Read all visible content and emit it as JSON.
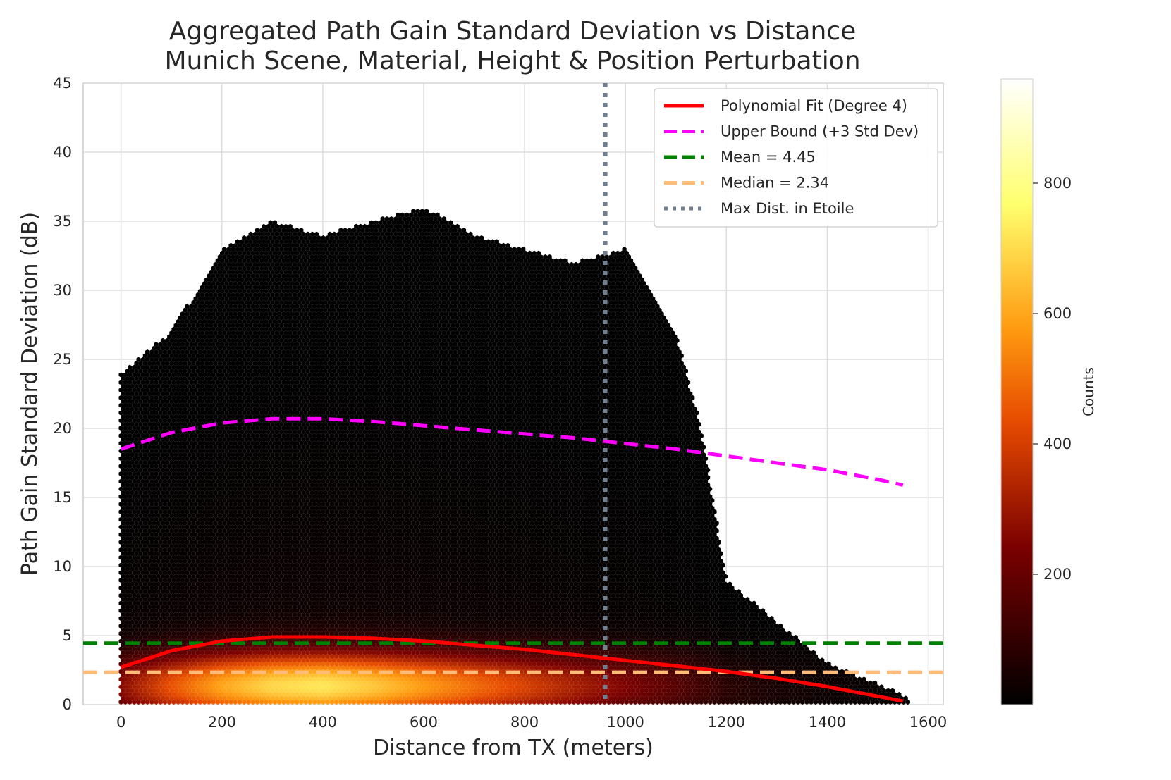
{
  "chart_data": {
    "type": "hexbin",
    "title_lines": [
      "Aggregated Path Gain Standard Deviation vs Distance",
      "Munich Scene, Material, Height & Position Perturbation"
    ],
    "xlabel": "Distance from TX (meters)",
    "ylabel": "Path Gain Standard Deviation (dB)",
    "xlim": [
      -75,
      1630
    ],
    "ylim": [
      0,
      45
    ],
    "x_ticks": [
      0,
      200,
      400,
      600,
      800,
      1000,
      1200,
      1400,
      1600
    ],
    "y_ticks": [
      0,
      5,
      10,
      15,
      20,
      25,
      30,
      35,
      40,
      45
    ],
    "grid": true,
    "legend_position": "upper right",
    "legend": [
      {
        "label": "Polynomial Fit (Degree 4)",
        "color": "#ff0000",
        "style": "solid"
      },
      {
        "label": "Upper Bound (+3 Std Dev)",
        "color": "#ff00ff",
        "style": "dashed"
      },
      {
        "label": "Mean = 4.45",
        "color": "#008000",
        "style": "dashed"
      },
      {
        "label": "Median = 2.34",
        "color": "#ffbb78",
        "style": "dashed"
      },
      {
        "label": "Max Dist. in Etoile",
        "color": "#708090",
        "style": "dotted"
      }
    ],
    "series": [
      {
        "name": "Polynomial Fit (Degree 4)",
        "x": [
          0,
          100,
          200,
          300,
          400,
          500,
          600,
          700,
          800,
          900,
          1000,
          1100,
          1200,
          1300,
          1400,
          1500,
          1550
        ],
        "y": [
          2.7,
          3.9,
          4.6,
          4.9,
          4.9,
          4.8,
          4.6,
          4.3,
          4.0,
          3.6,
          3.2,
          2.8,
          2.4,
          1.9,
          1.3,
          0.6,
          0.25
        ]
      },
      {
        "name": "Upper Bound (+3 Std Dev)",
        "x": [
          0,
          100,
          200,
          300,
          400,
          500,
          600,
          700,
          800,
          900,
          1000,
          1100,
          1200,
          1300,
          1400,
          1500,
          1550
        ],
        "y": [
          18.5,
          19.7,
          20.4,
          20.7,
          20.7,
          20.5,
          20.2,
          19.9,
          19.6,
          19.3,
          18.9,
          18.5,
          18.0,
          17.5,
          17.0,
          16.3,
          15.9
        ]
      }
    ],
    "mean_line": 4.45,
    "median_line": 2.34,
    "max_dist_etoile": 960,
    "colorbar": {
      "label": "Counts",
      "ticks": [
        200,
        400,
        600,
        800
      ],
      "range": [
        0,
        960
      ],
      "colormap": "afmhot"
    },
    "hexbin_density": {
      "x_range": [
        0,
        1560
      ],
      "cols": [
        {
          "x": 0,
          "max_y": 24,
          "peak": 250
        },
        {
          "x": 100,
          "max_y": 27,
          "peak": 420
        },
        {
          "x": 200,
          "max_y": 33,
          "peak": 560
        },
        {
          "x": 300,
          "max_y": 35,
          "peak": 650
        },
        {
          "x": 400,
          "max_y": 34,
          "peak": 680
        },
        {
          "x": 500,
          "max_y": 35,
          "peak": 620
        },
        {
          "x": 600,
          "max_y": 36,
          "peak": 540
        },
        {
          "x": 700,
          "max_y": 34,
          "peak": 460
        },
        {
          "x": 800,
          "max_y": 33,
          "peak": 380
        },
        {
          "x": 900,
          "max_y": 32,
          "peak": 300
        },
        {
          "x": 1000,
          "max_y": 33,
          "peak": 230
        },
        {
          "x": 1100,
          "max_y": 27,
          "peak": 160
        },
        {
          "x": 1150,
          "max_y": 20,
          "peak": 120
        },
        {
          "x": 1200,
          "max_y": 9,
          "peak": 80
        },
        {
          "x": 1300,
          "max_y": 6,
          "peak": 45
        },
        {
          "x": 1400,
          "max_y": 3,
          "peak": 25
        },
        {
          "x": 1500,
          "max_y": 1.5,
          "peak": 12
        },
        {
          "x": 1560,
          "max_y": 0.5,
          "peak": 5
        }
      ]
    }
  }
}
